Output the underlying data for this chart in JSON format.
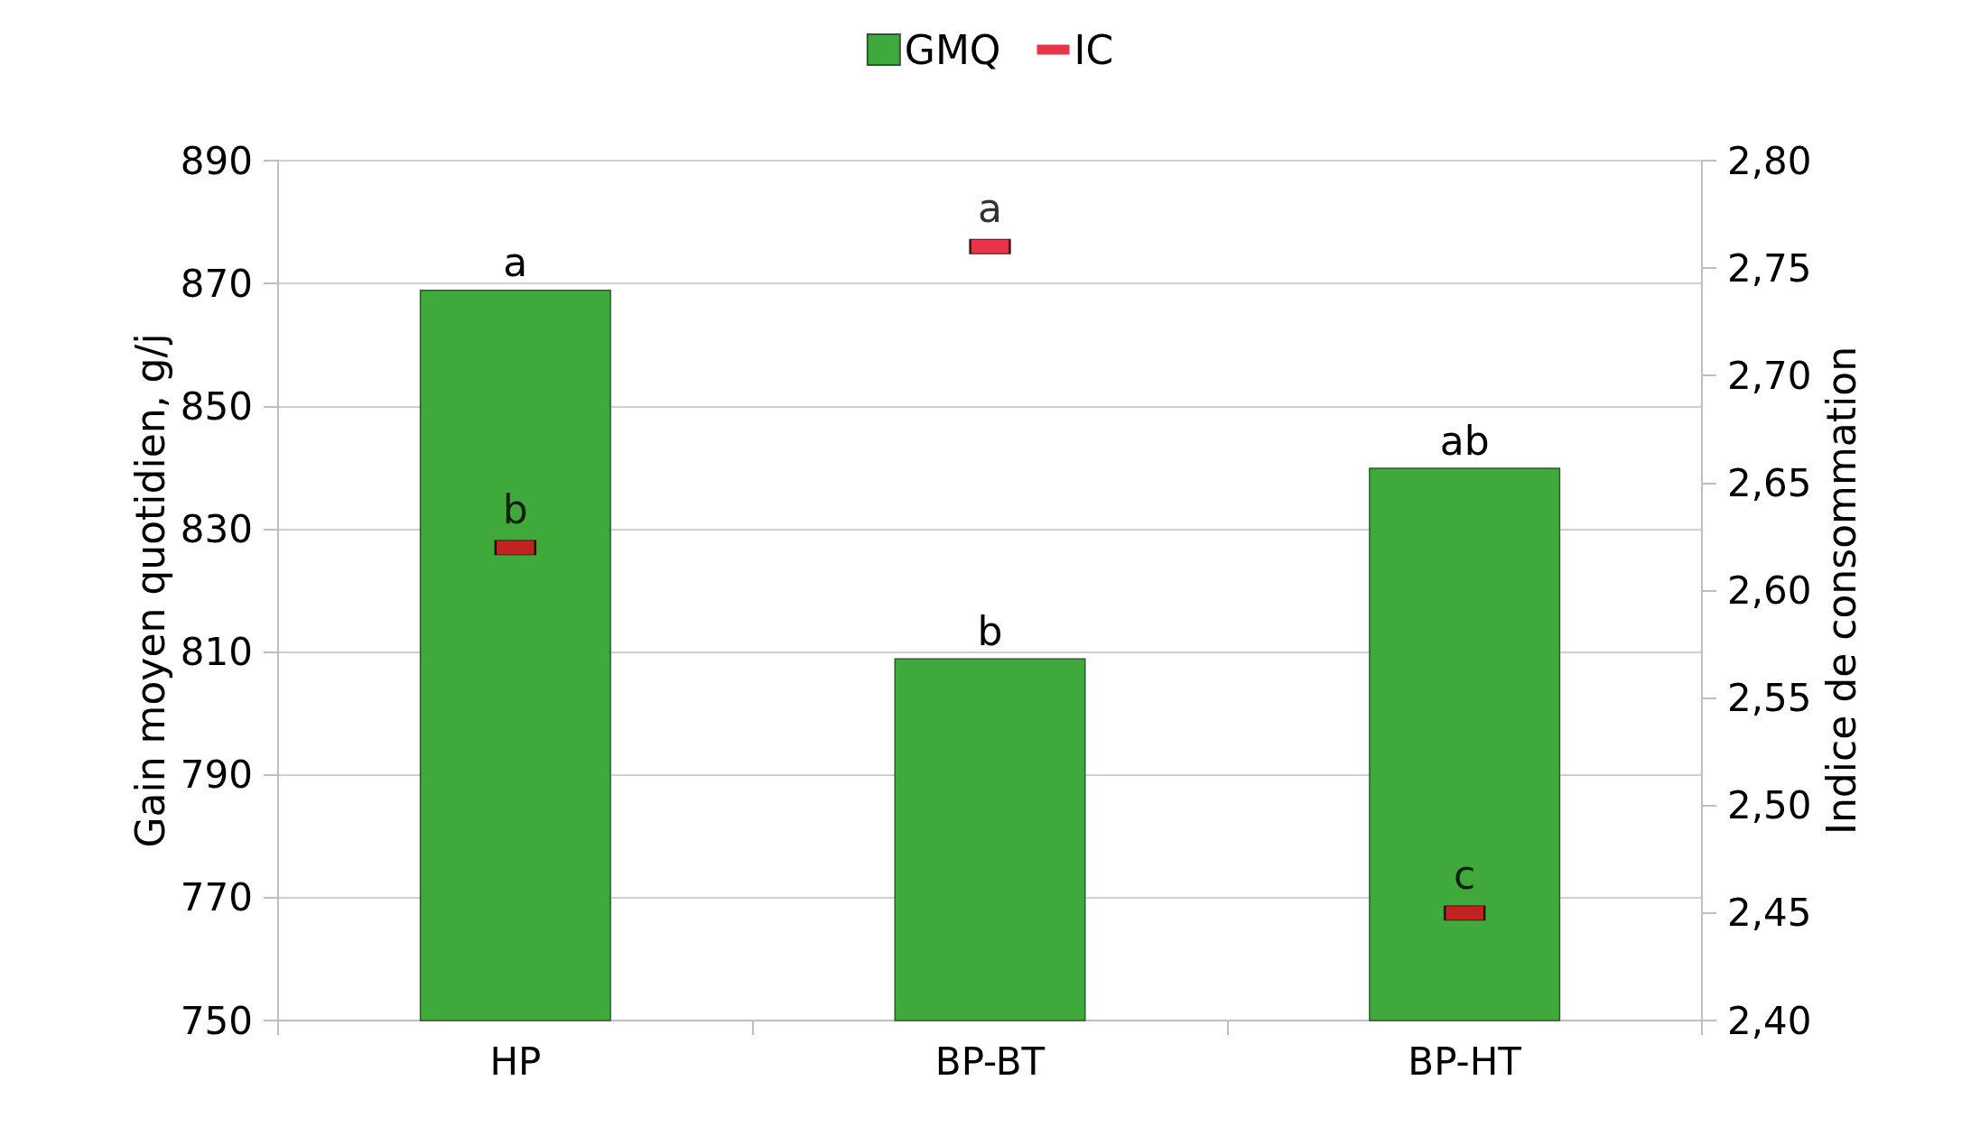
{
  "chart_data": {
    "type": "bar",
    "categories": [
      "HP",
      "BP-BT",
      "BP-HT"
    ],
    "series": [
      {
        "name": "GMQ",
        "color": "#40a93b",
        "values": [
          869,
          809,
          840
        ],
        "value_labels": [
          "a",
          "b",
          "ab"
        ]
      },
      {
        "name": "IC",
        "type": "scatter",
        "axis": "y2",
        "color": "#e2001a",
        "values": [
          2.62,
          2.76,
          2.45
        ],
        "value_labels": [
          "b",
          "a",
          "c"
        ]
      }
    ],
    "ylabel": "Gain moyen quotidien, g/j",
    "y2label": "Indice de consommation",
    "ylim": [
      750,
      890
    ],
    "yticks": [
      750,
      770,
      790,
      810,
      830,
      850,
      870,
      890
    ],
    "y2lim": [
      2.4,
      2.8
    ],
    "y2ticks": [
      {
        "value": 2.4,
        "label": "2,40"
      },
      {
        "value": 2.45,
        "label": "2,45"
      },
      {
        "value": 2.5,
        "label": "2,50"
      },
      {
        "value": 2.55,
        "label": "2,55"
      },
      {
        "value": 2.6,
        "label": "2,60"
      },
      {
        "value": 2.65,
        "label": "2,65"
      },
      {
        "value": 2.7,
        "label": "2,70"
      },
      {
        "value": 2.75,
        "label": "2,75"
      },
      {
        "value": 2.8,
        "label": "2,80"
      }
    ],
    "grid": "y",
    "legend": "top"
  }
}
